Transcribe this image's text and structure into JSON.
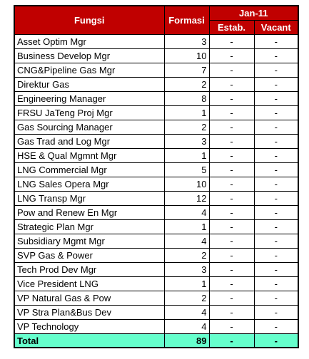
{
  "header": {
    "fungsi": "Fungsi",
    "formasi": "Formasi",
    "period": "Jan-11",
    "estab": "Estab.",
    "vacant": "Vacant"
  },
  "rows": [
    {
      "fungsi": "Asset Optim Mgr",
      "formasi": "3",
      "estab": "-",
      "vacant": "-"
    },
    {
      "fungsi": "Business Develop Mgr",
      "formasi": "10",
      "estab": "-",
      "vacant": "-"
    },
    {
      "fungsi": "CNG&Pipeline Gas Mgr",
      "formasi": "7",
      "estab": "-",
      "vacant": "-"
    },
    {
      "fungsi": "Direktur Gas",
      "formasi": "2",
      "estab": "-",
      "vacant": "-"
    },
    {
      "fungsi": "Engineering Manager",
      "formasi": "8",
      "estab": "-",
      "vacant": "-"
    },
    {
      "fungsi": "FRSU JaTeng Proj Mgr",
      "formasi": "1",
      "estab": "-",
      "vacant": "-"
    },
    {
      "fungsi": "Gas Sourcing Manager",
      "formasi": "2",
      "estab": "-",
      "vacant": "-"
    },
    {
      "fungsi": "Gas Trad and Log Mgr",
      "formasi": "3",
      "estab": "-",
      "vacant": "-"
    },
    {
      "fungsi": "HSE & Qual Mgmnt Mgr",
      "formasi": "1",
      "estab": "-",
      "vacant": "-"
    },
    {
      "fungsi": "LNG Commercial Mgr",
      "formasi": "5",
      "estab": "-",
      "vacant": "-"
    },
    {
      "fungsi": "LNG Sales Opera Mgr",
      "formasi": "10",
      "estab": "-",
      "vacant": "-"
    },
    {
      "fungsi": "LNG Transp Mgr",
      "formasi": "12",
      "estab": "-",
      "vacant": "-"
    },
    {
      "fungsi": "Pow and Renew En Mgr",
      "formasi": "4",
      "estab": "-",
      "vacant": "-"
    },
    {
      "fungsi": "Strategic Plan Mgr",
      "formasi": "1",
      "estab": "-",
      "vacant": "-"
    },
    {
      "fungsi": "Subsidiary Mgmt Mgr",
      "formasi": "4",
      "estab": "-",
      "vacant": "-"
    },
    {
      "fungsi": "SVP Gas & Power",
      "formasi": "2",
      "estab": "-",
      "vacant": "-"
    },
    {
      "fungsi": "Tech Prod Dev Mgr",
      "formasi": "3",
      "estab": "-",
      "vacant": "-"
    },
    {
      "fungsi": "Vice President LNG",
      "formasi": "1",
      "estab": "-",
      "vacant": "-"
    },
    {
      "fungsi": "VP Natural Gas & Pow",
      "formasi": "2",
      "estab": "-",
      "vacant": "-"
    },
    {
      "fungsi": "VP Stra Plan&Bus Dev",
      "formasi": "4",
      "estab": "-",
      "vacant": "-"
    },
    {
      "fungsi": "VP Technology",
      "formasi": "4",
      "estab": "-",
      "vacant": "-"
    }
  ],
  "total": {
    "label": "Total",
    "formasi": "89",
    "estab": "-",
    "vacant": "-"
  },
  "colors": {
    "header_bg": "#c00000",
    "header_text": "#ffffff",
    "total_bg": "#66ffcc"
  }
}
